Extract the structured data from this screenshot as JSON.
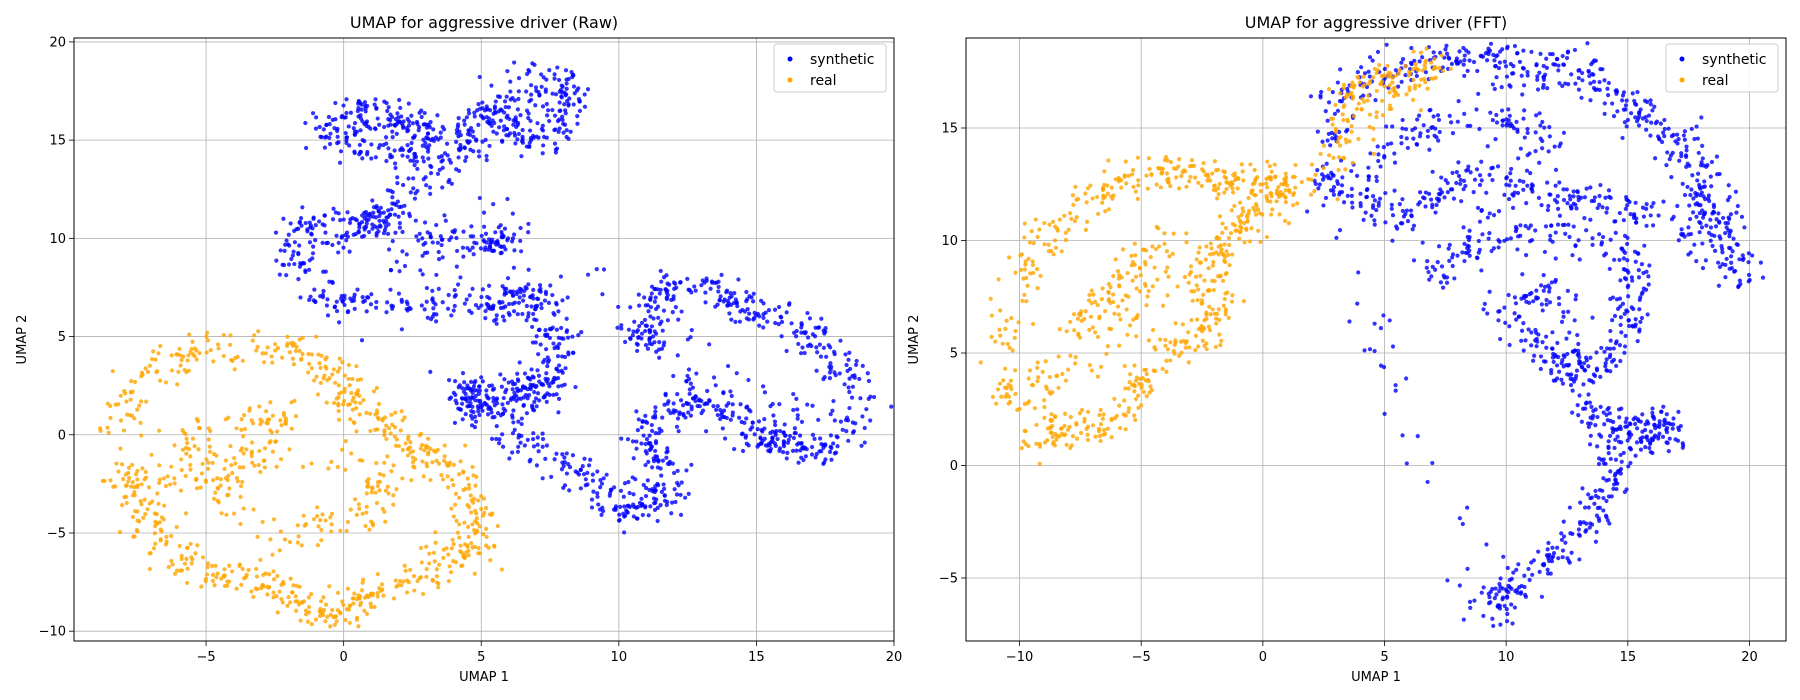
{
  "chart_data": [
    {
      "type": "scatter",
      "title": "UMAP for aggressive driver (Raw)",
      "xlabel": "UMAP 1",
      "ylabel": "UMAP 2",
      "xlim": [
        -9.8,
        20.0
      ],
      "ylim": [
        -10.5,
        20.2
      ],
      "xticks": [
        -5,
        0,
        5,
        10,
        15,
        20
      ],
      "yticks": [
        -10,
        -5,
        0,
        5,
        10,
        15,
        20
      ],
      "grid": true,
      "legend_position": "top-right",
      "series": [
        {
          "name": "synthetic",
          "color": "#0000ff",
          "approx_outline_points": [
            [
              0.0,
              16.5
            ],
            [
              1.5,
              16.5
            ],
            [
              3.0,
              15.5
            ],
            [
              2.5,
              14.2
            ],
            [
              0.5,
              14.8
            ],
            [
              -1.0,
              15.6
            ],
            [
              5.5,
              16.2
            ],
            [
              7.0,
              18.5
            ],
            [
              8.2,
              17.5
            ],
            [
              8.0,
              15.5
            ],
            [
              6.5,
              15.0
            ],
            [
              5.8,
              16.4
            ],
            [
              4.5,
              15.3
            ],
            [
              4.0,
              14.2
            ],
            [
              2.0,
              12.0
            ],
            [
              1.0,
              11.0
            ],
            [
              -2.0,
              8.2
            ],
            [
              -1.5,
              10.5
            ],
            [
              0.5,
              10.8
            ],
            [
              2.5,
              10.3
            ],
            [
              5.0,
              9.8
            ],
            [
              6.2,
              10.0
            ],
            [
              -1.0,
              7.0
            ],
            [
              1.0,
              6.5
            ],
            [
              3.5,
              6.7
            ],
            [
              5.5,
              6.6
            ],
            [
              6.3,
              7.0
            ],
            [
              7.2,
              7.0
            ],
            [
              7.6,
              5.0
            ],
            [
              7.6,
              3.0
            ],
            [
              7.0,
              1.5
            ],
            [
              6.5,
              2.7
            ],
            [
              5.5,
              1.2
            ],
            [
              4.5,
              1.5
            ],
            [
              4.3,
              2.5
            ],
            [
              6.0,
              0.0
            ],
            [
              8.0,
              -1.5
            ],
            [
              9.5,
              -2.8
            ],
            [
              10.5,
              -4.0
            ],
            [
              11.5,
              -3.0
            ],
            [
              11.8,
              -1.5
            ],
            [
              11.0,
              0.0
            ],
            [
              12.0,
              1.5
            ],
            [
              13.5,
              1.5
            ],
            [
              15.5,
              0.0
            ],
            [
              16.5,
              -0.8
            ],
            [
              18.0,
              -0.5
            ],
            [
              18.5,
              2.5
            ],
            [
              17.5,
              4.5
            ],
            [
              16.0,
              6.0
            ],
            [
              14.5,
              6.5
            ],
            [
              13.5,
              7.3
            ],
            [
              11.5,
              7.5
            ],
            [
              11.0,
              5.0
            ],
            [
              10.8,
              5.2
            ],
            [
              15.0,
              -0.5
            ],
            [
              16.8,
              1.2
            ]
          ]
        },
        {
          "name": "real",
          "color": "#ffa500",
          "approx_outline_points": [
            [
              -8.2,
              0.2
            ],
            [
              -7.5,
              3.0
            ],
            [
              -5.0,
              4.5
            ],
            [
              -2.0,
              4.3
            ],
            [
              -0.5,
              3.5
            ],
            [
              0.2,
              1.8
            ],
            [
              1.5,
              0.5
            ],
            [
              3.0,
              -1.0
            ],
            [
              4.2,
              -2.0
            ],
            [
              5.0,
              -4.5
            ],
            [
              4.5,
              -6.0
            ],
            [
              3.0,
              -7.0
            ],
            [
              1.0,
              -8.0
            ],
            [
              0.0,
              -9.2
            ],
            [
              -1.5,
              -8.8
            ],
            [
              -3.0,
              -7.5
            ],
            [
              -5.0,
              -7.2
            ],
            [
              -6.5,
              -5.5
            ],
            [
              -7.5,
              -3.5
            ],
            [
              -8.0,
              -2.0
            ],
            [
              -4.0,
              -2.5
            ],
            [
              -2.0,
              1.0
            ],
            [
              -6.0,
              0.0
            ],
            [
              -3.0,
              -5.5
            ],
            [
              1.0,
              -4.0
            ],
            [
              2.0,
              -2.0
            ]
          ]
        }
      ]
    },
    {
      "type": "scatter",
      "title": "UMAP for aggressive driver (FFT)",
      "xlabel": "UMAP 1",
      "ylabel": "UMAP 2",
      "xlim": [
        -12.2,
        21.5
      ],
      "ylim": [
        -7.8,
        19.0
      ],
      "xticks": [
        -10,
        -5,
        0,
        5,
        10,
        15,
        20
      ],
      "yticks": [
        -5,
        0,
        5,
        10,
        15
      ],
      "grid": true,
      "legend_position": "top-right",
      "series": [
        {
          "name": "synthetic",
          "color": "#0000ff",
          "approx_outline_points": [
            [
              2.5,
              12.0
            ],
            [
              3.0,
              16.0
            ],
            [
              4.5,
              17.5
            ],
            [
              7.0,
              18.0
            ],
            [
              9.0,
              18.2
            ],
            [
              10.5,
              17.5
            ],
            [
              12.5,
              17.8
            ],
            [
              14.0,
              17.0
            ],
            [
              15.5,
              15.5
            ],
            [
              17.0,
              14.5
            ],
            [
              17.8,
              13.0
            ],
            [
              18.2,
              11.5
            ],
            [
              19.0,
              10.5
            ],
            [
              20.0,
              8.2
            ],
            [
              16.5,
              11.0
            ],
            [
              14.0,
              11.5
            ],
            [
              12.0,
              12.0
            ],
            [
              9.0,
              13.0
            ],
            [
              7.0,
              12.0
            ],
            [
              5.0,
              11.0
            ],
            [
              3.5,
              12.5
            ],
            [
              6.5,
              15.0
            ],
            [
              9.5,
              15.5
            ],
            [
              12.0,
              14.5
            ],
            [
              7.0,
              8.5
            ],
            [
              9.5,
              10.0
            ],
            [
              12.5,
              10.5
            ],
            [
              15.5,
              9.0
            ],
            [
              15.0,
              7.0
            ],
            [
              14.5,
              5.0
            ],
            [
              13.0,
              4.0
            ],
            [
              11.5,
              5.0
            ],
            [
              10.0,
              7.0
            ],
            [
              12.0,
              8.0
            ],
            [
              13.5,
              2.5
            ],
            [
              14.5,
              1.5
            ],
            [
              16.0,
              1.8
            ],
            [
              17.0,
              1.6
            ],
            [
              14.5,
              0.5
            ],
            [
              14.2,
              -1.0
            ],
            [
              13.0,
              -3.0
            ],
            [
              11.5,
              -4.5
            ],
            [
              10.0,
              -5.5
            ],
            [
              9.0,
              -6.5
            ]
          ]
        },
        {
          "name": "real",
          "color": "#ffa500",
          "approx_outline_points": [
            [
              -10.5,
              2.5
            ],
            [
              -10.5,
              6.5
            ],
            [
              -9.0,
              10.0
            ],
            [
              -7.0,
              12.0
            ],
            [
              -5.0,
              13.0
            ],
            [
              -3.0,
              13.0
            ],
            [
              -1.5,
              12.5
            ],
            [
              0.0,
              12.5
            ],
            [
              1.0,
              12.3
            ],
            [
              -1.0,
              10.5
            ],
            [
              -2.5,
              9.0
            ],
            [
              -1.5,
              7.0
            ],
            [
              -3.0,
              5.5
            ],
            [
              -5.0,
              4.0
            ],
            [
              -6.0,
              2.0
            ],
            [
              -8.0,
              1.5
            ],
            [
              -9.5,
              1.2
            ],
            [
              -8.0,
              6.0
            ],
            [
              -6.0,
              8.0
            ],
            [
              -4.0,
              10.0
            ],
            [
              -7.0,
              4.0
            ],
            [
              3.0,
              13.5
            ],
            [
              3.5,
              16.5
            ],
            [
              5.0,
              17.0
            ],
            [
              7.0,
              17.9
            ],
            [
              4.0,
              15.0
            ]
          ]
        }
      ]
    }
  ]
}
